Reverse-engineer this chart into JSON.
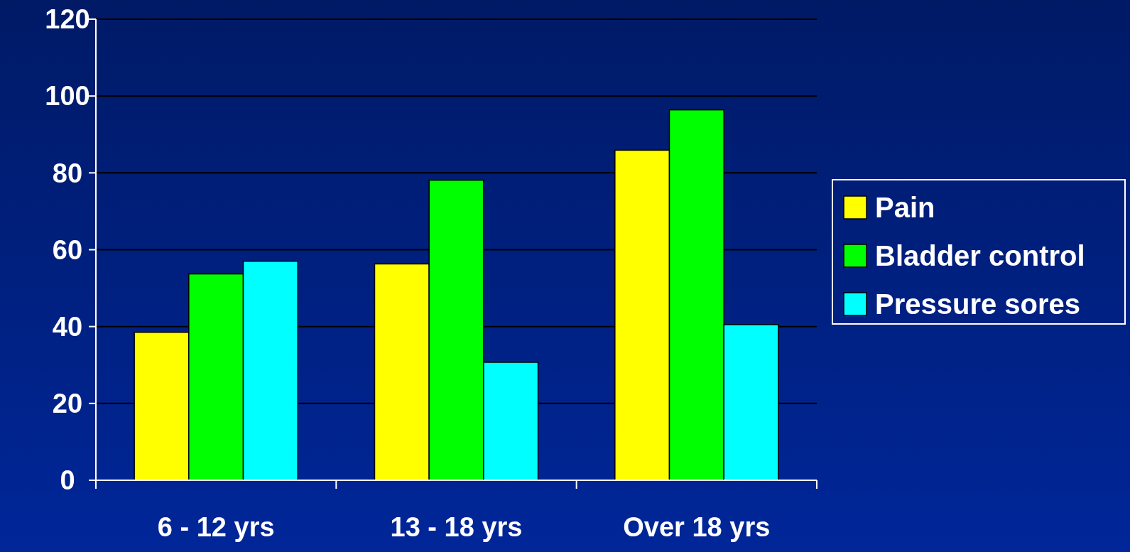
{
  "chart_data": {
    "type": "bar",
    "categories": [
      "6 - 12 yrs",
      "13 - 18 yrs",
      "Over 18 yrs"
    ],
    "series": [
      {
        "name": "Pain",
        "color": "#ffff00",
        "values": [
          38.5,
          56.3,
          85.9
        ]
      },
      {
        "name": "Bladder control",
        "color": "#00ff00",
        "values": [
          53.7,
          78.1,
          96.4
        ]
      },
      {
        "name": "Pressure sores",
        "color": "#00ffff",
        "values": [
          57.0,
          30.7,
          40.5
        ]
      }
    ],
    "ylim": [
      0,
      120
    ],
    "yticks": [
      0,
      20,
      40,
      60,
      80,
      100,
      120
    ],
    "grid": "y",
    "legend": "right"
  }
}
